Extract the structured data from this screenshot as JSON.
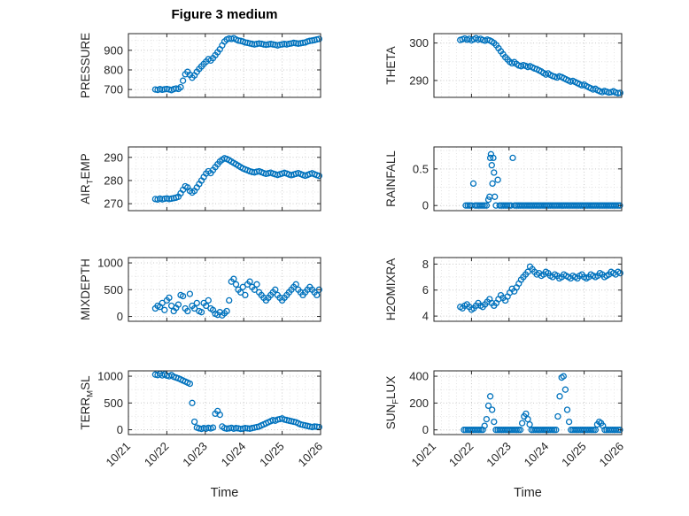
{
  "title": "Figure 3 medium",
  "xlabel": "Time",
  "x_tick_labels": [
    "10/21",
    "10/22",
    "10/23",
    "10/24",
    "10/25",
    "10/26"
  ],
  "style": {
    "accent": "#0072BD",
    "axis": "#262626",
    "grid_major": "#c9c9c9",
    "grid_minor": "#e4e4e4"
  },
  "x_common": [
    0.7,
    0.76,
    0.82,
    0.88,
    0.94,
    1.0,
    1.06,
    1.12,
    1.18,
    1.24,
    1.3,
    1.36,
    1.42,
    1.48,
    1.54,
    1.6,
    1.66,
    1.72,
    1.78,
    1.84,
    1.9,
    1.96,
    2.02,
    2.08,
    2.14,
    2.2,
    2.26,
    2.32,
    2.38,
    2.44,
    2.5,
    2.56,
    2.62,
    2.68,
    2.74,
    2.8,
    2.86,
    2.92,
    2.98,
    3.04,
    3.1,
    3.16,
    3.22,
    3.28,
    3.34,
    3.4,
    3.46,
    3.52,
    3.58,
    3.64,
    3.7,
    3.76,
    3.82,
    3.88,
    3.94,
    4.0,
    4.06,
    4.12,
    4.18,
    4.24,
    4.3,
    4.36,
    4.42,
    4.48,
    4.54,
    4.6,
    4.66,
    4.72,
    4.78,
    4.84,
    4.9,
    4.96
  ],
  "chart_data": [
    {
      "type": "scatter",
      "name": "pressure",
      "ylabel_parts": [
        {
          "t": "PRESSURE"
        }
      ],
      "yticks": [
        700,
        800,
        900
      ],
      "ylim": [
        660,
        985
      ],
      "xlim": [
        0,
        5
      ],
      "x": "common",
      "y": [
        700,
        698,
        702,
        699,
        701,
        703,
        700,
        697,
        702,
        705,
        703,
        712,
        745,
        778,
        790,
        775,
        760,
        772,
        790,
        805,
        818,
        830,
        842,
        855,
        848,
        860,
        875,
        890,
        905,
        925,
        945,
        955,
        960,
        958,
        962,
        955,
        950,
        948,
        945,
        940,
        938,
        935,
        932,
        930,
        932,
        935,
        933,
        930,
        928,
        930,
        932,
        930,
        928,
        925,
        928,
        930,
        932,
        930,
        933,
        935,
        938,
        936,
        934,
        936,
        938,
        940,
        945,
        948,
        950,
        952,
        955,
        958
      ]
    },
    {
      "type": "scatter",
      "name": "theta",
      "ylabel_parts": [
        {
          "t": "THETA"
        }
      ],
      "yticks": [
        290,
        300
      ],
      "ylim": [
        285.5,
        302.5
      ],
      "xlim": [
        0,
        5
      ],
      "x": "common",
      "y": [
        300.8,
        301,
        301.2,
        300.9,
        301.1,
        300.7,
        301,
        301.3,
        300.9,
        301.1,
        300.8,
        300.6,
        300.9,
        300.7,
        300.4,
        300,
        299.4,
        298.6,
        297.8,
        297,
        296.2,
        295.6,
        295,
        294.6,
        294.9,
        294.4,
        294,
        293.8,
        294.1,
        293.9,
        293.6,
        293.8,
        293.5,
        293.2,
        293,
        292.7,
        292.4,
        292,
        291.6,
        291.9,
        291.5,
        291.2,
        291,
        290.8,
        291.1,
        290.9,
        290.6,
        290.3,
        290,
        289.7,
        289.9,
        289.6,
        289.3,
        289,
        288.7,
        288.9,
        288.5,
        288.2,
        287.9,
        287.6,
        287.8,
        287.4,
        287.1,
        286.9,
        287.2,
        287,
        286.8,
        286.9,
        287.1,
        286.8,
        286.6,
        286.7
      ]
    },
    {
      "type": "scatter",
      "name": "air-temp",
      "ylabel_parts": [
        {
          "t": "AIR"
        },
        {
          "t": "T",
          "sub": true
        },
        {
          "t": "EMP"
        }
      ],
      "yticks": [
        270,
        280,
        290
      ],
      "ylim": [
        267,
        294.5
      ],
      "xlim": [
        0,
        5
      ],
      "x": "common",
      "y": [
        272,
        271.8,
        272.2,
        271.9,
        272.1,
        272.3,
        272,
        272.2,
        272.4,
        272.6,
        273,
        274.5,
        276,
        277.5,
        277,
        275.5,
        274.8,
        275.5,
        277,
        278.5,
        280,
        281.5,
        283,
        284,
        283.2,
        284.5,
        285.8,
        287,
        288.2,
        289,
        289.6,
        289.3,
        288.8,
        288.2,
        287.6,
        287,
        286.4,
        285.8,
        285.2,
        284.8,
        284.4,
        284,
        283.7,
        283.5,
        283.8,
        284,
        283.6,
        283.2,
        282.9,
        283.1,
        283.4,
        283,
        282.7,
        282.4,
        282.7,
        283,
        283.3,
        283,
        282.6,
        282.3,
        282.6,
        282.9,
        283.2,
        282.8,
        282.4,
        282.1,
        282.4,
        282.8,
        283.1,
        282.7,
        282.3,
        282
      ]
    },
    {
      "type": "scatter",
      "name": "rainfall",
      "ylabel_parts": [
        {
          "t": "RAINFALL"
        }
      ],
      "yticks": [
        0,
        0.5
      ],
      "ylim": [
        -0.07,
        0.8
      ],
      "xlim": [
        0,
        5
      ],
      "x": [
        0.85,
        0.9,
        0.95,
        1,
        1.05,
        1.1,
        1.15,
        1.2,
        1.25,
        1.3,
        1.35,
        1.4,
        1.45,
        1.48,
        1.5,
        1.52,
        1.54,
        1.56,
        1.58,
        1.6,
        1.62,
        1.65,
        1.7,
        1.75,
        1.8,
        1.85,
        1.9,
        1.95,
        2.0,
        2.05,
        2.1,
        2.15,
        2.2,
        2.25,
        2.3,
        2.35,
        2.4,
        2.45,
        2.5,
        2.55,
        2.6,
        2.65,
        2.7,
        2.75,
        2.8,
        2.85,
        2.9,
        2.95,
        3.0,
        3.05,
        3.1,
        3.15,
        3.2,
        3.25,
        3.3,
        3.35,
        3.4,
        3.45,
        3.5,
        3.55,
        3.6,
        3.65,
        3.7,
        3.75,
        3.8,
        3.85,
        3.9,
        3.95,
        4.0,
        4.05,
        4.1,
        4.15,
        4.2,
        4.25,
        4.3,
        4.35,
        4.4,
        4.45,
        4.5,
        4.55,
        4.6,
        4.65,
        4.7,
        4.75,
        4.8,
        4.85,
        4.9,
        4.95
      ],
      "y": [
        0,
        0,
        0,
        0,
        0.3,
        0,
        0,
        0,
        0,
        0,
        0,
        0,
        0.08,
        0.12,
        0.65,
        0.7,
        0.55,
        0.3,
        0.65,
        0.45,
        0.12,
        0,
        0.35,
        0,
        0,
        0,
        0,
        0,
        0,
        0,
        0.65,
        0,
        0,
        0,
        0,
        0,
        0,
        0,
        0,
        0,
        0,
        0,
        0,
        0,
        0,
        0,
        0,
        0,
        0,
        0,
        0,
        0,
        0,
        0,
        0,
        0,
        0,
        0,
        0,
        0,
        0,
        0,
        0,
        0,
        0,
        0,
        0,
        0,
        0,
        0,
        0,
        0,
        0,
        0,
        0,
        0,
        0,
        0,
        0,
        0,
        0,
        0,
        0,
        0,
        0,
        0,
        0,
        0
      ]
    },
    {
      "type": "scatter",
      "name": "mixdepth",
      "ylabel_parts": [
        {
          "t": "MIXDEPTH"
        }
      ],
      "yticks": [
        0,
        500,
        1000
      ],
      "ylim": [
        -90,
        1100
      ],
      "xlim": [
        0,
        5
      ],
      "x": "common",
      "y": [
        150,
        200,
        180,
        250,
        120,
        300,
        350,
        200,
        100,
        160,
        220,
        400,
        380,
        150,
        100,
        420,
        200,
        150,
        250,
        100,
        80,
        250,
        200,
        300,
        150,
        120,
        50,
        30,
        80,
        20,
        60,
        100,
        300,
        650,
        700,
        600,
        500,
        450,
        550,
        400,
        600,
        650,
        550,
        500,
        600,
        450,
        400,
        350,
        300,
        350,
        400,
        450,
        500,
        400,
        350,
        300,
        350,
        400,
        450,
        500,
        550,
        600,
        500,
        450,
        400,
        450,
        500,
        550,
        500,
        450,
        400,
        500
      ]
    },
    {
      "type": "scatter",
      "name": "h2omixra",
      "ylabel_parts": [
        {
          "t": "H2OMIXRA"
        }
      ],
      "yticks": [
        4,
        6,
        8
      ],
      "ylim": [
        3.6,
        8.5
      ],
      "xlim": [
        0,
        5
      ],
      "x": "common",
      "y": [
        4.7,
        4.6,
        4.8,
        4.9,
        4.7,
        4.5,
        4.6,
        4.8,
        5,
        4.8,
        4.7,
        4.9,
        5.1,
        5.3,
        5,
        4.8,
        5,
        5.3,
        5.6,
        5.4,
        5.2,
        5.5,
        5.8,
        6.1,
        5.9,
        6.2,
        6.5,
        6.8,
        7,
        7.2,
        7.4,
        7.8,
        7.6,
        7.4,
        7.2,
        7.3,
        7.1,
        7.2,
        7.4,
        7.3,
        7.1,
        7,
        7.2,
        7.1,
        6.9,
        7,
        7.2,
        7.1,
        7,
        6.9,
        7.1,
        7,
        6.9,
        7.1,
        7.2,
        7,
        6.9,
        7,
        7.2,
        7.1,
        7,
        7.1,
        7.3,
        7.2,
        7,
        7.1,
        7.2,
        7.4,
        7.3,
        7.2,
        7.4,
        7.3
      ]
    },
    {
      "type": "scatter",
      "name": "terr-msl",
      "ylabel_parts": [
        {
          "t": "TERR"
        },
        {
          "t": "M",
          "sub": true
        },
        {
          "t": "SL"
        }
      ],
      "yticks": [
        0,
        500,
        1000
      ],
      "ylim": [
        -90,
        1100
      ],
      "xlim": [
        0,
        5
      ],
      "x": "common",
      "y": [
        1030,
        1020,
        1045,
        1015,
        1035,
        1010,
        1000,
        1020,
        990,
        975,
        960,
        940,
        920,
        900,
        880,
        860,
        500,
        150,
        40,
        25,
        15,
        30,
        20,
        35,
        25,
        40,
        300,
        350,
        280,
        60,
        30,
        20,
        25,
        35,
        20,
        30,
        25,
        15,
        20,
        30,
        25,
        20,
        30,
        40,
        50,
        60,
        80,
        100,
        120,
        140,
        160,
        180,
        170,
        190,
        200,
        210,
        190,
        180,
        170,
        160,
        150,
        140,
        120,
        100,
        90,
        80,
        70,
        60,
        50,
        60,
        55,
        50
      ]
    },
    {
      "type": "scatter",
      "name": "sun-flux",
      "ylabel_parts": [
        {
          "t": "SUN"
        },
        {
          "t": "F",
          "sub": true
        },
        {
          "t": "LUX"
        }
      ],
      "yticks": [
        0,
        200,
        400
      ],
      "ylim": [
        -35,
        440
      ],
      "xlim": [
        0,
        5
      ],
      "x": [
        0.8,
        0.85,
        0.9,
        0.95,
        1.0,
        1.05,
        1.1,
        1.15,
        1.2,
        1.25,
        1.3,
        1.35,
        1.4,
        1.45,
        1.5,
        1.55,
        1.6,
        1.65,
        1.7,
        1.75,
        1.8,
        1.85,
        1.9,
        1.95,
        2.0,
        2.05,
        2.1,
        2.15,
        2.2,
        2.25,
        2.3,
        2.35,
        2.4,
        2.45,
        2.5,
        2.55,
        2.6,
        2.65,
        2.7,
        2.75,
        2.8,
        2.85,
        2.9,
        2.95,
        3.0,
        3.05,
        3.1,
        3.15,
        3.2,
        3.25,
        3.3,
        3.35,
        3.4,
        3.45,
        3.5,
        3.55,
        3.6,
        3.65,
        3.7,
        3.75,
        3.8,
        3.85,
        3.9,
        3.95,
        4.0,
        4.05,
        4.1,
        4.15,
        4.2,
        4.25,
        4.3,
        4.35,
        4.4,
        4.45,
        4.5,
        4.55,
        4.6,
        4.65,
        4.7,
        4.75,
        4.8,
        4.85,
        4.9,
        4.95
      ],
      "y": [
        0,
        0,
        0,
        0,
        0,
        0,
        0,
        0,
        0,
        0,
        0,
        30,
        80,
        180,
        250,
        150,
        60,
        0,
        0,
        0,
        0,
        0,
        0,
        0,
        0,
        0,
        0,
        0,
        0,
        0,
        0,
        50,
        100,
        120,
        80,
        40,
        0,
        0,
        0,
        0,
        0,
        0,
        0,
        0,
        0,
        0,
        0,
        0,
        0,
        0,
        100,
        250,
        390,
        400,
        300,
        150,
        60,
        0,
        0,
        0,
        0,
        0,
        0,
        0,
        0,
        0,
        0,
        0,
        0,
        0,
        0,
        40,
        60,
        50,
        30,
        0,
        0,
        0,
        0,
        0,
        0,
        0,
        0,
        0
      ]
    }
  ]
}
